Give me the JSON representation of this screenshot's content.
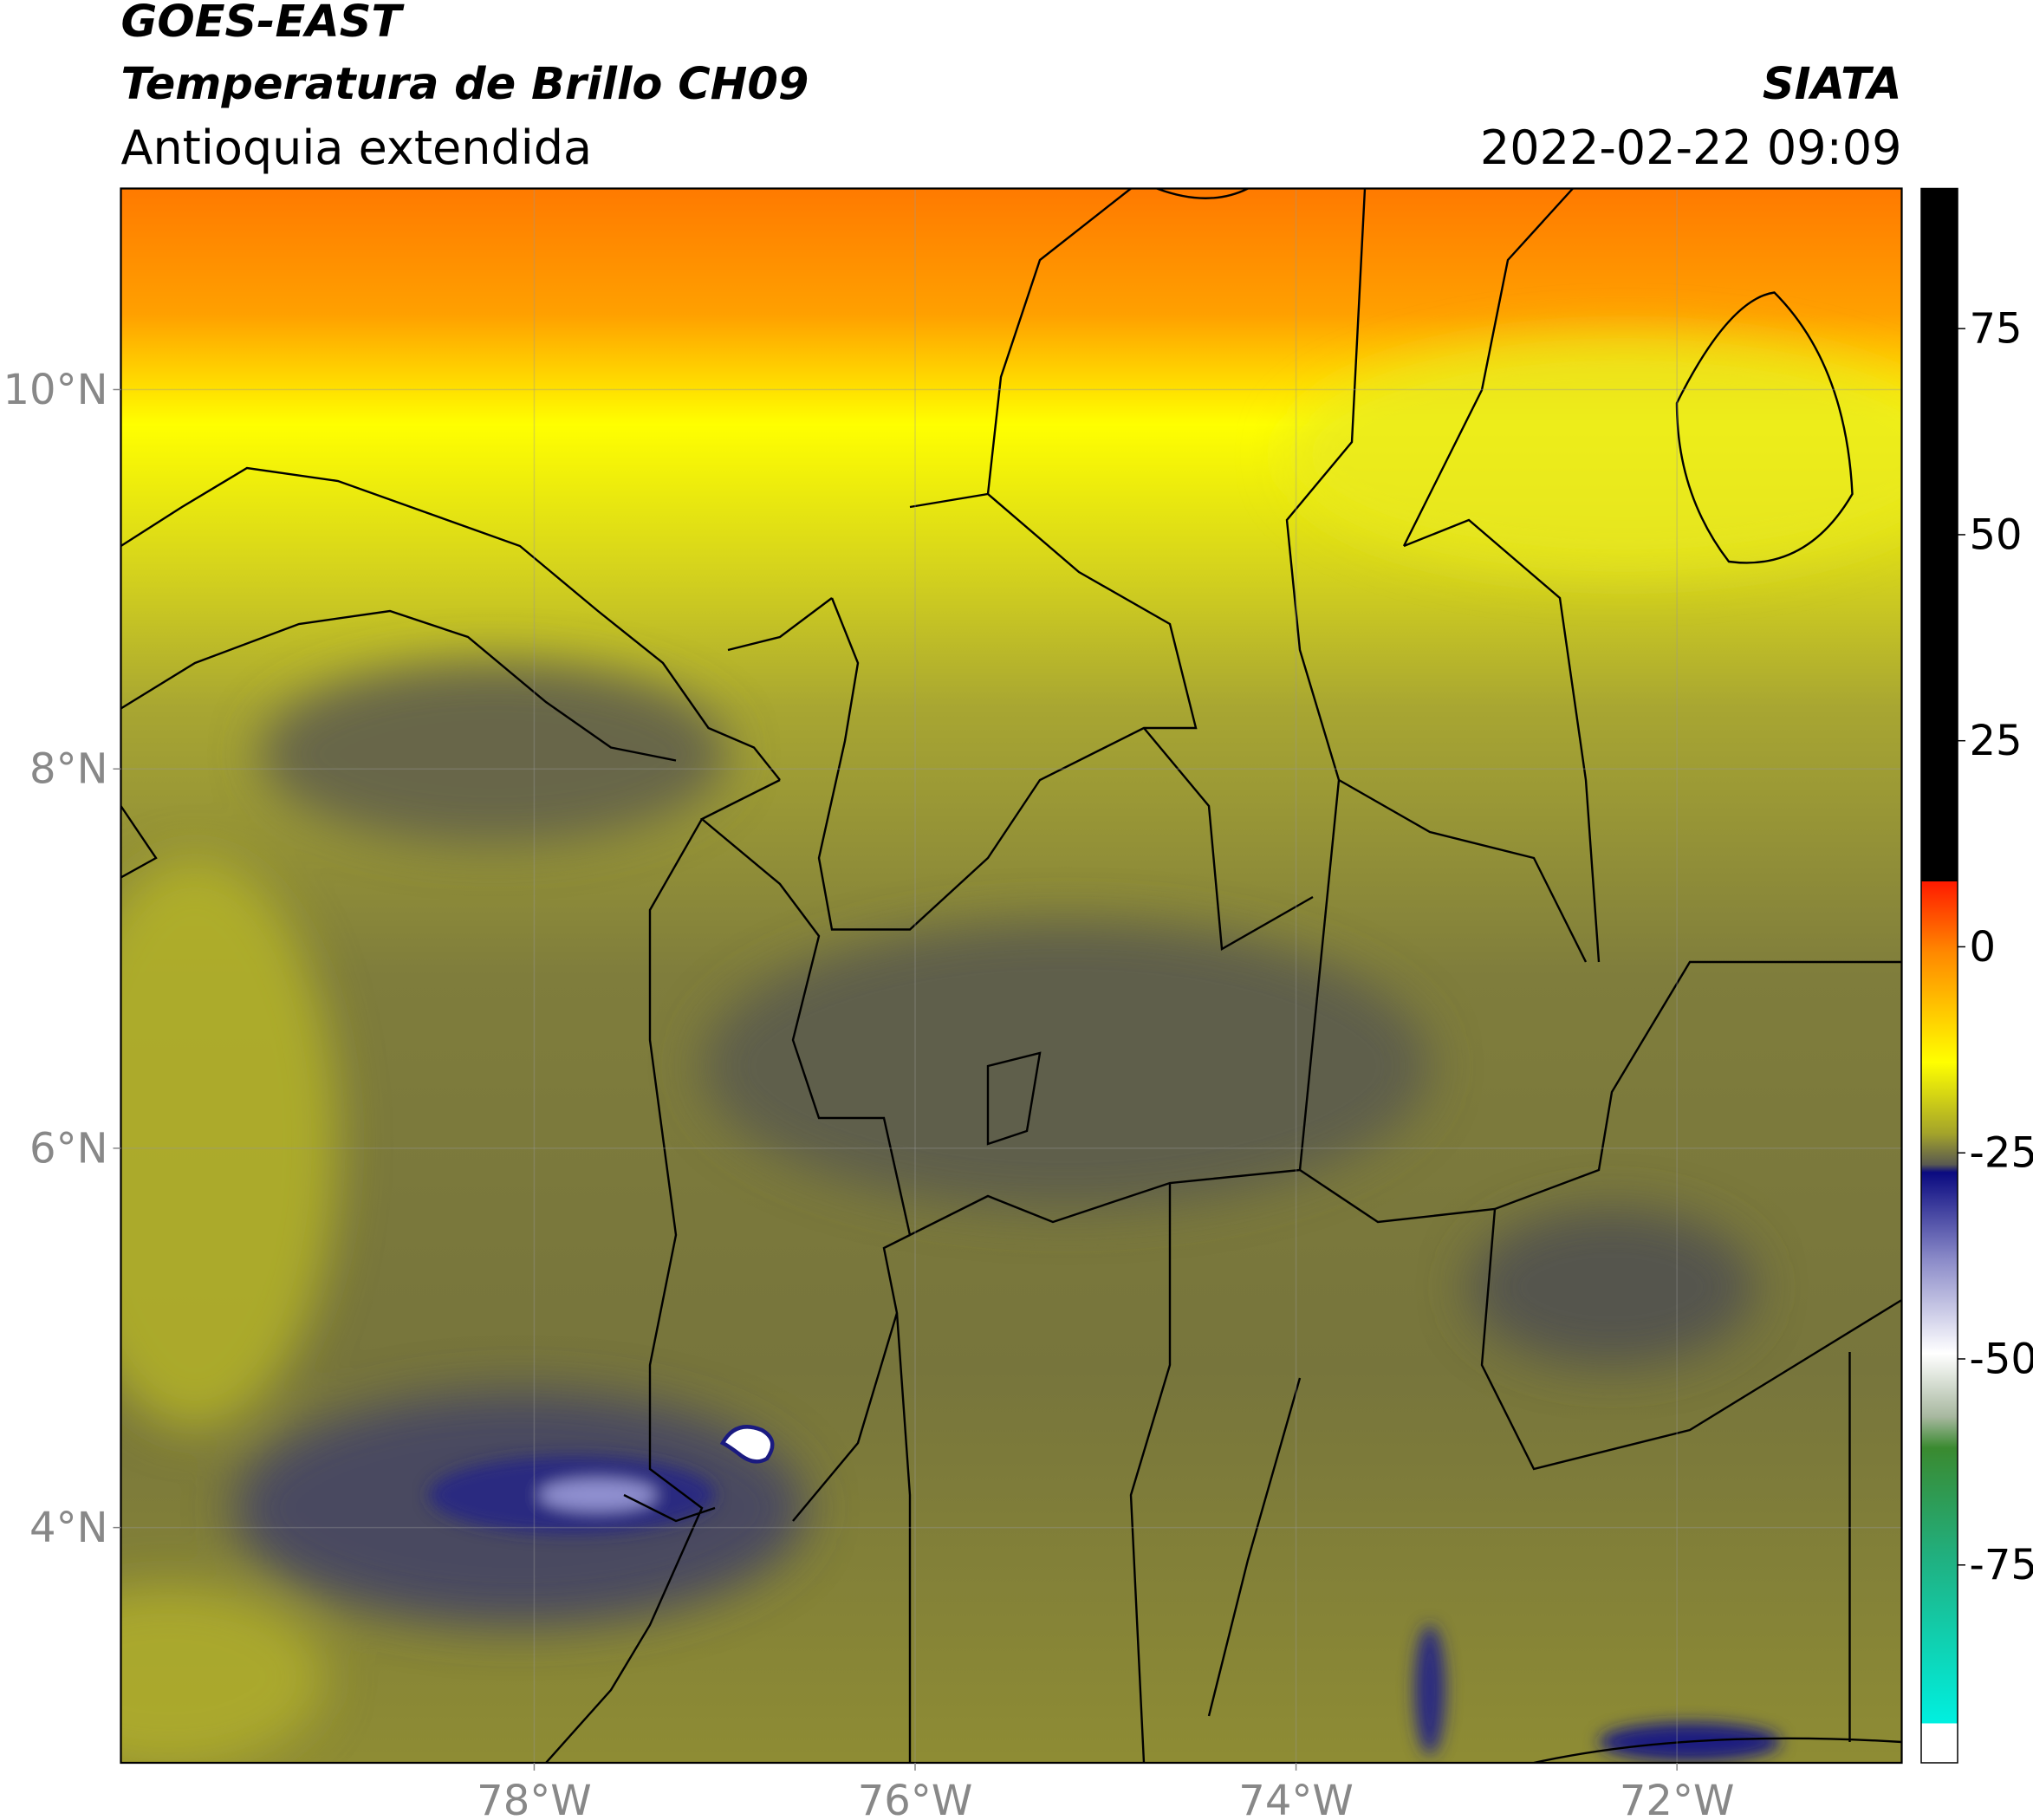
{
  "header": {
    "title": "GOES-EAST",
    "subtitle": "Temperatura de Brillo CH09",
    "region": "Antioquia extendida",
    "source": "SIATA",
    "datetime": "2022-02-22 09:09"
  },
  "map": {
    "xlim": [
      -80.17,
      -70.82
    ],
    "ylim": [
      2.76,
      11.06
    ],
    "xticks": [
      {
        "value": -78,
        "label": "78°W"
      },
      {
        "value": -76,
        "label": "76°W"
      },
      {
        "value": -74,
        "label": "74°W"
      },
      {
        "value": -72,
        "label": "72°W"
      }
    ],
    "yticks": [
      {
        "value": 4,
        "label": "4°N"
      },
      {
        "value": 6,
        "label": "6°N"
      },
      {
        "value": 8,
        "label": "8°N"
      },
      {
        "value": 10,
        "label": "10°N"
      }
    ],
    "grid": true
  },
  "colorbar": {
    "lim": [
      -99,
      92
    ],
    "ticks": [
      -75,
      -50,
      -25,
      0,
      25,
      50,
      75
    ]
  }
}
